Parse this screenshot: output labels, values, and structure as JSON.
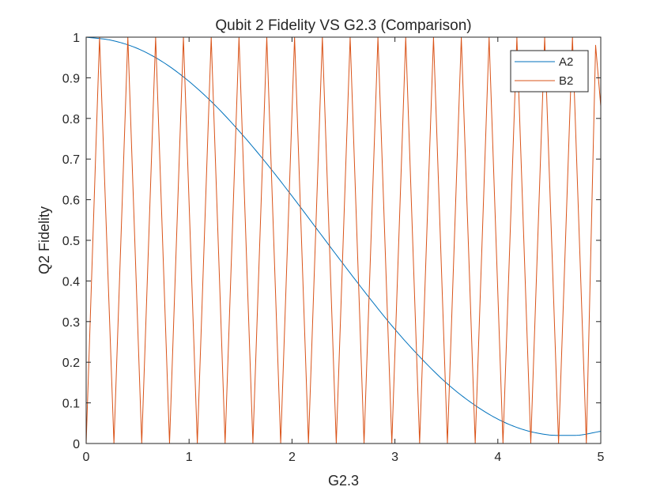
{
  "chart_data": {
    "type": "line",
    "title": "Qubit 2 Fidelity VS G2.3 (Comparison)",
    "xlabel": "G2.3",
    "ylabel": "Q2 Fidelity",
    "xlim": [
      0,
      5
    ],
    "ylim": [
      0,
      1
    ],
    "xticks": [
      0,
      1,
      2,
      3,
      4,
      5
    ],
    "xtick_labels": [
      "0",
      "1",
      "2",
      "3",
      "4",
      "5"
    ],
    "yticks": [
      0,
      0.1,
      0.2,
      0.3,
      0.4,
      0.5,
      0.6,
      0.7,
      0.8,
      0.9,
      1
    ],
    "ytick_labels": [
      "0",
      "0.1",
      "0.2",
      "0.3",
      "0.4",
      "0.5",
      "0.6",
      "0.7",
      "0.8",
      "0.9",
      "1"
    ],
    "grid": false,
    "legend_position": "top-right",
    "series": [
      {
        "name": "A2",
        "color": "#0072BD",
        "x": [
          0,
          0.25,
          0.5,
          0.75,
          1.0,
          1.25,
          1.5,
          1.75,
          2.0,
          2.25,
          2.5,
          2.75,
          3.0,
          3.25,
          3.5,
          3.75,
          4.0,
          4.25,
          4.5,
          4.625,
          4.75,
          5.0
        ],
        "y": [
          1.0,
          0.992,
          0.972,
          0.938,
          0.891,
          0.833,
          0.765,
          0.69,
          0.609,
          0.525,
          0.441,
          0.359,
          0.281,
          0.211,
          0.149,
          0.099,
          0.06,
          0.034,
          0.021,
          0.02,
          0.02,
          0.03
        ]
      },
      {
        "name": "B2",
        "color": "#D95319",
        "x": [
          0,
          0.13,
          0.27,
          0.405,
          0.54,
          0.675,
          0.81,
          0.945,
          1.08,
          1.215,
          1.35,
          1.485,
          1.62,
          1.755,
          1.89,
          2.025,
          2.16,
          2.295,
          2.43,
          2.565,
          2.7,
          2.835,
          2.97,
          3.105,
          3.24,
          3.375,
          3.51,
          3.645,
          3.78,
          3.915,
          4.05,
          4.185,
          4.32,
          4.455,
          4.59,
          4.725,
          4.86,
          4.95,
          5.0
        ],
        "y": [
          0.0,
          1.0,
          0.0,
          1.0,
          0.0,
          1.0,
          0.0,
          1.0,
          0.0,
          1.0,
          0.0,
          1.0,
          0.0,
          1.0,
          0.0,
          1.0,
          0.0,
          1.0,
          0.0,
          1.0,
          0.0,
          1.0,
          0.0,
          1.0,
          0.0,
          1.0,
          0.0,
          1.0,
          0.0,
          1.0,
          0.0,
          1.0,
          0.0,
          1.0,
          0.0,
          1.0,
          0.0,
          0.98,
          0.83
        ]
      }
    ]
  }
}
